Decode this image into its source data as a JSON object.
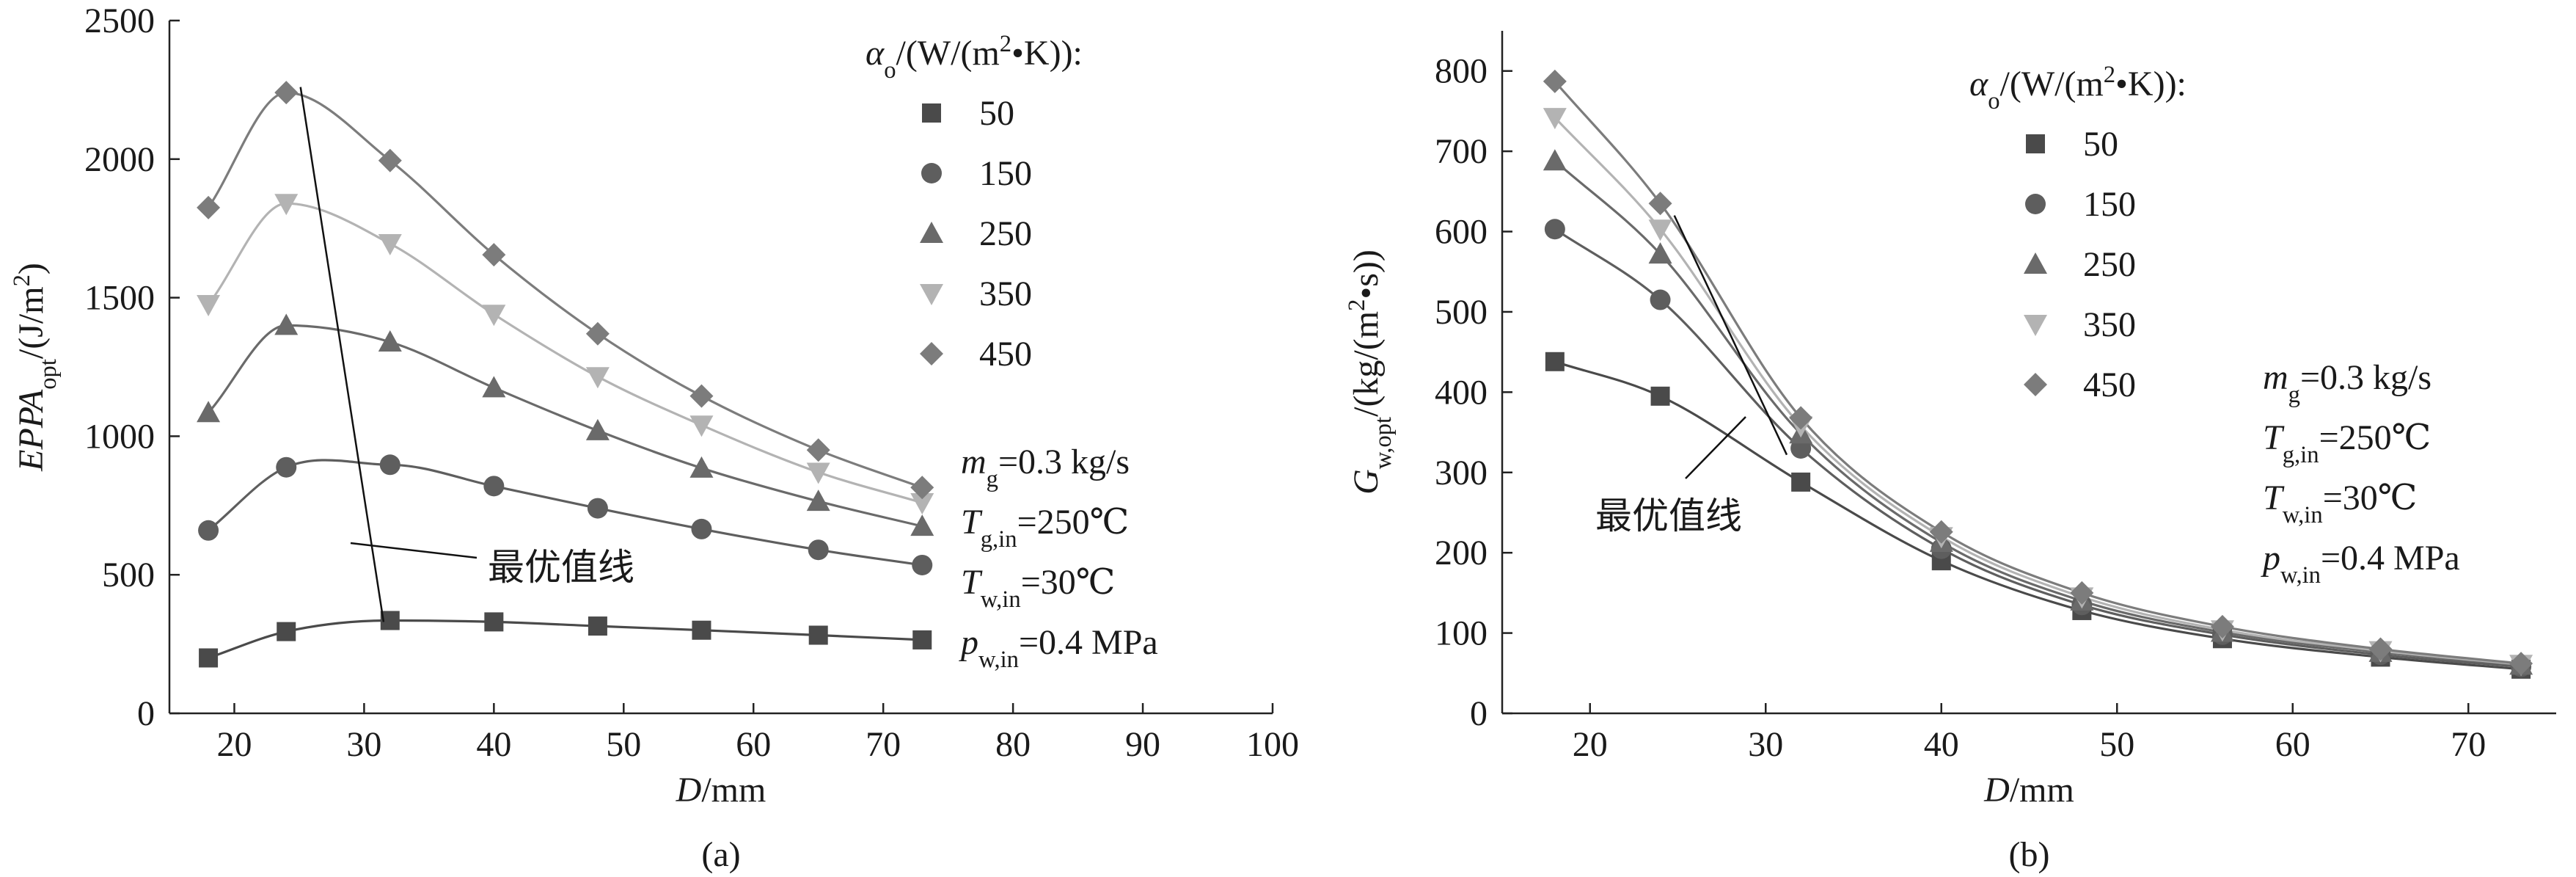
{
  "chart_data": [
    {
      "type": "line",
      "panel_label": "(a)",
      "xlabel": "D/mm",
      "ylabel": "EPPA_opt/(J/m²)",
      "xlim": [
        15,
        100
      ],
      "ylim": [
        0,
        2500
      ],
      "xticks": [
        20,
        30,
        40,
        50,
        60,
        70,
        80,
        90,
        100
      ],
      "yticks": [
        0,
        500,
        1000,
        1500,
        2000,
        2500
      ],
      "grid": false,
      "legend_title": "αo/(W/(m²•K)):",
      "legend_position": "top-right",
      "x": [
        18,
        24,
        32,
        40,
        48,
        56,
        65,
        73
      ],
      "series": [
        {
          "name": "50",
          "marker": "square",
          "color": "#4a4a4a",
          "values": [
            200,
            295,
            335,
            330,
            315,
            300,
            282,
            265
          ]
        },
        {
          "name": "150",
          "marker": "circle",
          "color": "#5e5e5e",
          "values": [
            660,
            888,
            897,
            820,
            740,
            665,
            590,
            535
          ]
        },
        {
          "name": "250",
          "marker": "triangle-up",
          "color": "#6a6a6a",
          "values": [
            1085,
            1400,
            1340,
            1175,
            1020,
            885,
            765,
            675
          ]
        },
        {
          "name": "350",
          "marker": "triangle-down",
          "color": "#b3b3b3",
          "values": [
            1475,
            1840,
            1695,
            1440,
            1215,
            1040,
            870,
            760
          ]
        },
        {
          "name": "450",
          "marker": "diamond",
          "color": "#7c7c7c",
          "values": [
            1825,
            2240,
            1995,
            1655,
            1370,
            1145,
            950,
            815
          ]
        }
      ],
      "optimum_line": {
        "label": "最优值线",
        "x": [
          31.5,
          25.1
        ],
        "y": [
          330,
          2260
        ]
      },
      "annotations": [
        "m_g=0.3 kg/s",
        "T_g,in=250℃",
        "T_w,in=30℃",
        "p_w,in=0.4 MPa"
      ]
    },
    {
      "type": "line",
      "panel_label": "(b)",
      "xlabel": "D/mm",
      "ylabel": "G_w,opt/(kg/(m²•s))",
      "xlim": [
        15,
        75
      ],
      "ylim": [
        0,
        850
      ],
      "xticks": [
        20,
        30,
        40,
        50,
        60,
        70
      ],
      "yticks": [
        0,
        100,
        200,
        300,
        400,
        500,
        600,
        700,
        800
      ],
      "grid": false,
      "legend_title": "αo/(W/(m²•K)):",
      "legend_position": "top-right",
      "x": [
        18,
        24,
        32,
        40,
        48,
        56,
        65,
        73
      ],
      "series": [
        {
          "name": "50",
          "marker": "square",
          "color": "#4a4a4a",
          "values": [
            438,
            395,
            288,
            190,
            128,
            93,
            70,
            55
          ]
        },
        {
          "name": "150",
          "marker": "circle",
          "color": "#5e5e5e",
          "values": [
            603,
            515,
            330,
            205,
            135,
            98,
            73,
            58
          ]
        },
        {
          "name": "250",
          "marker": "triangle-up",
          "color": "#6a6a6a",
          "values": [
            688,
            572,
            348,
            213,
            140,
            101,
            76,
            60
          ]
        },
        {
          "name": "350",
          "marker": "triangle-down",
          "color": "#b3b3b3",
          "values": [
            742,
            603,
            358,
            220,
            145,
            104,
            78,
            61
          ]
        },
        {
          "name": "450",
          "marker": "diamond",
          "color": "#7c7c7c",
          "values": [
            787,
            635,
            368,
            226,
            150,
            108,
            80,
            62
          ]
        }
      ],
      "optimum_line": {
        "label": "最优值线",
        "x": [
          24.8,
          31.2
        ],
        "y": [
          620,
          322
        ]
      },
      "annotations": [
        "m_g=0.3 kg/s",
        "T_g,in=250℃",
        "T_w,in=30℃",
        "p_w,in=0.4 MPa"
      ]
    }
  ]
}
